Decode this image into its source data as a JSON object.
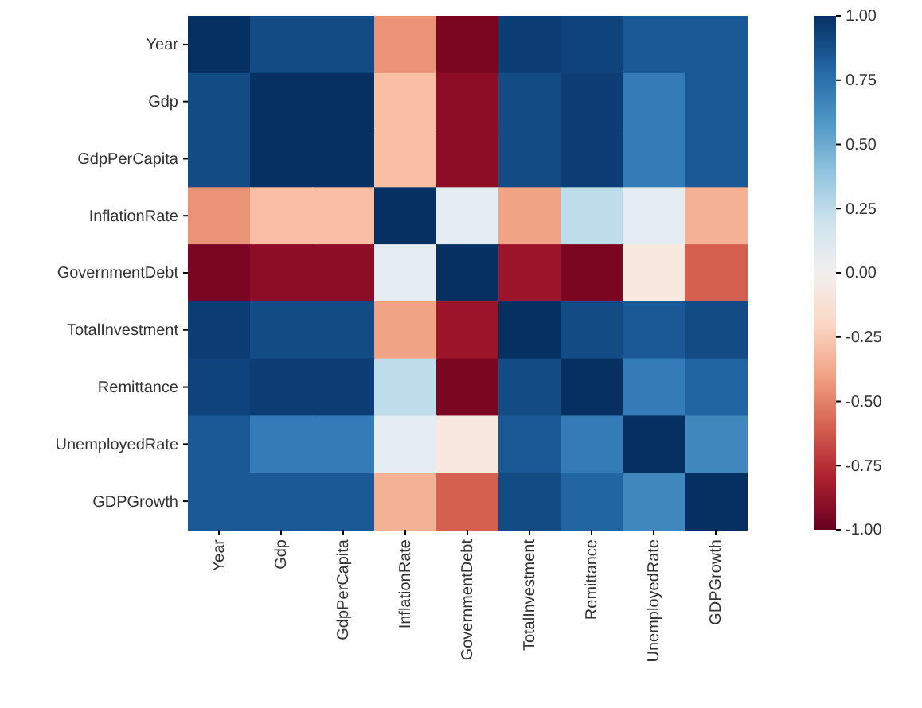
{
  "chart_data": {
    "type": "heatmap",
    "categories": [
      "Year",
      "Gdp",
      "GdpPerCapita",
      "InflationRate",
      "GovernmentDebt",
      "TotalInvestment",
      "Remittance",
      "UnemployedRate",
      "GDPGrowth"
    ],
    "y_categories": [
      "Year",
      "Gdp",
      "GdpPerCapita",
      "InflationRate",
      "GovernmentDebt",
      "TotalInvestment",
      "Remittance",
      "UnemployedRate",
      "GDPGrowth"
    ],
    "cells": [
      [
        1,
        0.9,
        0.9,
        -0.45,
        -0.95,
        0.95,
        0.93,
        0.85,
        0.85
      ],
      [
        0.9,
        1,
        1,
        -0.3,
        -0.9,
        0.9,
        0.95,
        0.7,
        0.85
      ],
      [
        0.9,
        1,
        1,
        -0.3,
        -0.9,
        0.9,
        0.95,
        0.7,
        0.85
      ],
      [
        -0.45,
        -0.3,
        -0.3,
        1,
        0.1,
        -0.4,
        0.25,
        0.1,
        -0.35
      ],
      [
        -0.95,
        -0.9,
        -0.9,
        0.1,
        1,
        -0.85,
        -0.95,
        -0.1,
        -0.6
      ],
      [
        0.95,
        0.9,
        0.9,
        -0.4,
        -0.85,
        1,
        0.9,
        0.85,
        0.9
      ],
      [
        0.93,
        0.95,
        0.95,
        0.25,
        -0.95,
        0.9,
        1,
        0.7,
        0.8
      ],
      [
        0.85,
        0.7,
        0.7,
        0.1,
        -0.1,
        0.85,
        0.7,
        1,
        0.65
      ],
      [
        0.85,
        0.85,
        0.85,
        -0.35,
        -0.6,
        0.9,
        0.8,
        0.65,
        1
      ]
    ],
    "clim": [
      -1,
      1
    ],
    "cticks": [
      {
        "value": 1,
        "label": "1.00"
      },
      {
        "value": 0.75,
        "label": "0.75"
      },
      {
        "value": 0.5,
        "label": "0.50"
      },
      {
        "value": 0.25,
        "label": "0.25"
      },
      {
        "value": 0,
        "label": "0.00"
      },
      {
        "value": -0.25,
        "label": "-0.25"
      },
      {
        "value": -0.5,
        "label": "-0.50"
      },
      {
        "value": -0.75,
        "label": "-0.75"
      },
      {
        "value": -1,
        "label": "-1.00"
      }
    ]
  }
}
